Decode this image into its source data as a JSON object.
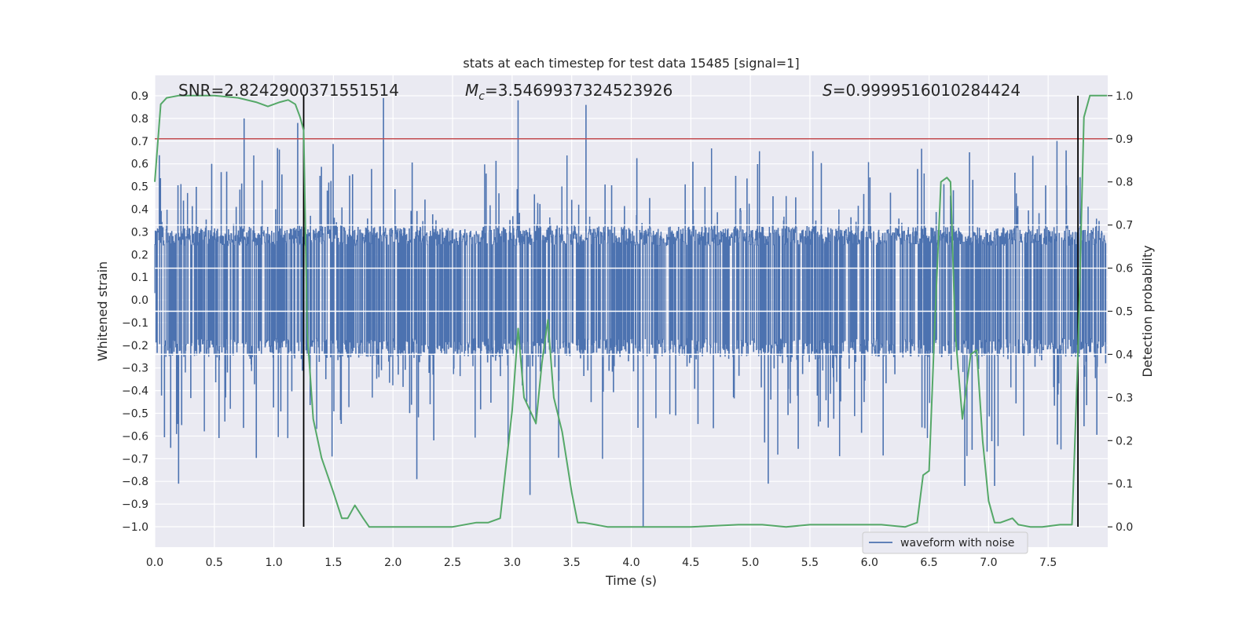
{
  "chart_data": {
    "type": "line",
    "title": "stats at each timestep for test data 15485 [signal=1]",
    "xlabel": "Time (s)",
    "ylabel": "Whitened strain",
    "y2label": "Detection probability",
    "xlim": [
      0.0,
      8.0
    ],
    "ylim": [
      -1.09,
      0.99
    ],
    "y2lim": [
      -0.047,
      1.047
    ],
    "xticks": [
      "0.0",
      "0.5",
      "1.0",
      "1.5",
      "2.0",
      "2.5",
      "3.0",
      "3.5",
      "4.0",
      "4.5",
      "5.0",
      "5.5",
      "6.0",
      "6.5",
      "7.0",
      "7.5"
    ],
    "yticks": [
      "0.9",
      "0.8",
      "0.7",
      "0.6",
      "0.5",
      "0.4",
      "0.3",
      "0.2",
      "0.1",
      "0.0",
      "-0.1",
      "-0.2",
      "-0.3",
      "-0.4",
      "-0.5",
      "-0.6",
      "-0.7",
      "-0.8",
      "-0.9",
      "-1.0"
    ],
    "y2ticks": [
      "1.0",
      "0.9",
      "0.8",
      "0.7",
      "0.6",
      "0.5",
      "0.4",
      "0.3",
      "0.2",
      "0.1",
      "0.0"
    ],
    "grid": true,
    "annotations": {
      "snr": "SNR=2.8242900371551514",
      "mc_symbol": "M",
      "mc_sub": "c",
      "mc_value": "=3.5469937324523926",
      "s_symbol": "S",
      "s_value": "=0.9999516010284424"
    },
    "threshold": {
      "axis": "y2",
      "value": 0.9,
      "color": "#c44e52"
    },
    "vlines": [
      {
        "x": 1.25,
        "ymin": -1.0,
        "ymax": 0.9,
        "color": "#000000"
      },
      {
        "x": 7.75,
        "ymin": -1.0,
        "ymax": 0.9,
        "color": "#000000"
      }
    ],
    "series": [
      {
        "name": "waveform with noise",
        "axis": "y",
        "color": "#4c72b0",
        "style": "dense noisy waveform, core band about -0.25 to 0.32, spikes to about +0.89 and -1.0",
        "spikes": [
          [
            0.75,
            0.8
          ],
          [
            1.2,
            0.78
          ],
          [
            1.92,
            0.89
          ],
          [
            3.05,
            0.88
          ],
          [
            3.62,
            0.86
          ],
          [
            4.1,
            -1.0
          ],
          [
            2.2,
            -0.79
          ],
          [
            0.2,
            -0.81
          ],
          [
            5.15,
            -0.81
          ],
          [
            6.8,
            -0.82
          ],
          [
            7.05,
            -0.82
          ],
          [
            3.15,
            -0.86
          ]
        ]
      },
      {
        "name": "detection probability",
        "axis": "y2",
        "color": "#55a868",
        "x": [
          0.0,
          0.05,
          0.1,
          0.2,
          0.3,
          0.5,
          0.7,
          0.85,
          0.95,
          1.05,
          1.12,
          1.18,
          1.22,
          1.25,
          1.28,
          1.33,
          1.4,
          1.45,
          1.5,
          1.57,
          1.62,
          1.68,
          1.75,
          1.8,
          1.9,
          2.0,
          2.5,
          2.7,
          2.8,
          2.9,
          3.0,
          3.05,
          3.1,
          3.2,
          3.25,
          3.3,
          3.35,
          3.42,
          3.5,
          3.55,
          3.6,
          3.7,
          3.8,
          4.0,
          4.5,
          4.9,
          5.1,
          5.3,
          5.5,
          5.7,
          5.9,
          6.1,
          6.3,
          6.4,
          6.45,
          6.5,
          6.55,
          6.6,
          6.65,
          6.68,
          6.72,
          6.78,
          6.85,
          6.9,
          6.95,
          7.0,
          7.05,
          7.1,
          7.2,
          7.25,
          7.35,
          7.45,
          7.6,
          7.7,
          7.75,
          7.8,
          7.85,
          8.0
        ],
        "y": [
          0.8,
          0.98,
          0.995,
          1.0,
          1.0,
          1.0,
          0.995,
          0.985,
          0.975,
          0.985,
          0.99,
          0.98,
          0.95,
          0.92,
          0.45,
          0.25,
          0.16,
          0.12,
          0.08,
          0.02,
          0.02,
          0.05,
          0.02,
          0.0,
          0.0,
          0.0,
          0.0,
          0.01,
          0.01,
          0.02,
          0.27,
          0.46,
          0.3,
          0.24,
          0.38,
          0.48,
          0.3,
          0.22,
          0.08,
          0.01,
          0.01,
          0.005,
          0.0,
          0.0,
          0.0,
          0.005,
          0.005,
          0.0,
          0.005,
          0.005,
          0.005,
          0.005,
          0.0,
          0.01,
          0.12,
          0.13,
          0.48,
          0.8,
          0.81,
          0.8,
          0.45,
          0.25,
          0.4,
          0.41,
          0.2,
          0.06,
          0.01,
          0.01,
          0.02,
          0.005,
          0.0,
          0.0,
          0.005,
          0.005,
          0.4,
          0.95,
          1.0,
          1.0
        ]
      }
    ],
    "legend": {
      "placement": "bottom-center-right",
      "entries": [
        "waveform with noise"
      ]
    }
  }
}
